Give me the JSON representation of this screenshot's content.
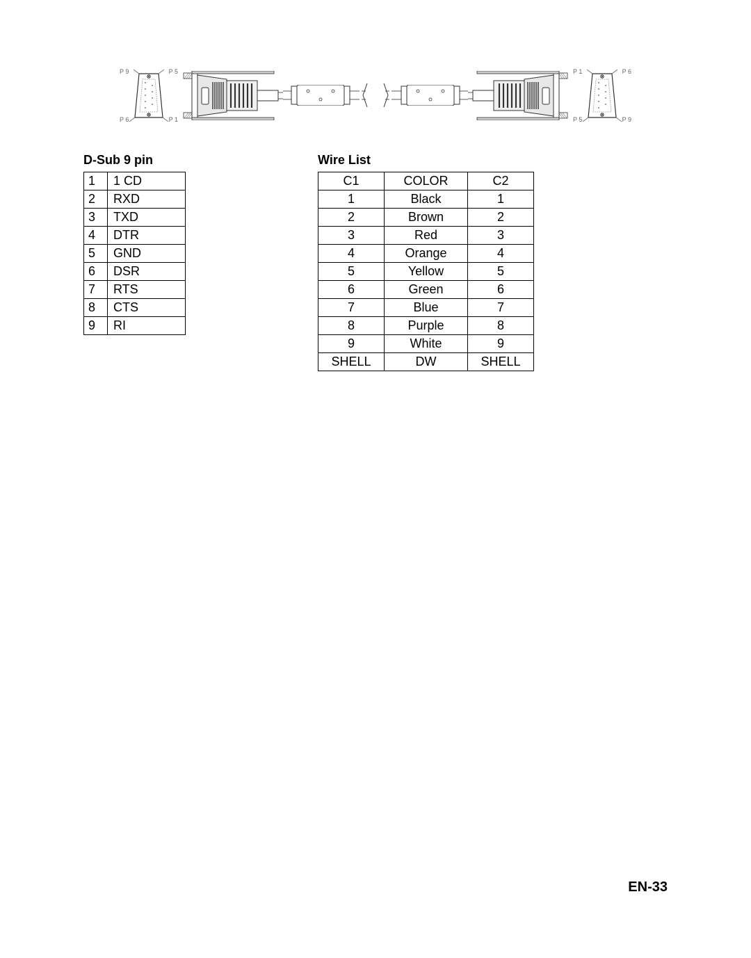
{
  "diagram": {
    "left_labels": {
      "top_left": "P 9",
      "top_right": "P 5",
      "bottom_left": "P 6",
      "bottom_right": "P 1"
    },
    "right_labels": {
      "top_left": "P 1",
      "top_right": "P 6",
      "bottom_left": "P 5",
      "bottom_right": "P 9"
    }
  },
  "pinout_table": {
    "title": "D-Sub 9 pin",
    "rows": [
      {
        "n": "1",
        "name": "1 CD"
      },
      {
        "n": "2",
        "name": "RXD"
      },
      {
        "n": "3",
        "name": "TXD"
      },
      {
        "n": "4",
        "name": "DTR"
      },
      {
        "n": "5",
        "name": "GND"
      },
      {
        "n": "6",
        "name": "DSR"
      },
      {
        "n": "7",
        "name": "RTS"
      },
      {
        "n": "8",
        "name": "CTS"
      },
      {
        "n": "9",
        "name": "RI"
      }
    ]
  },
  "wire_table": {
    "title": "Wire List",
    "headers": {
      "c1": "C1",
      "color": "COLOR",
      "c2": "C2"
    },
    "rows": [
      {
        "c1": "1",
        "color": "Black",
        "c2": "1"
      },
      {
        "c1": "2",
        "color": "Brown",
        "c2": "2"
      },
      {
        "c1": "3",
        "color": "Red",
        "c2": "3"
      },
      {
        "c1": "4",
        "color": "Orange",
        "c2": "4"
      },
      {
        "c1": "5",
        "color": "Yellow",
        "c2": "5"
      },
      {
        "c1": "6",
        "color": "Green",
        "c2": "6"
      },
      {
        "c1": "7",
        "color": "Blue",
        "c2": "7"
      },
      {
        "c1": "8",
        "color": "Purple",
        "c2": "8"
      },
      {
        "c1": "9",
        "color": "White",
        "c2": "9"
      },
      {
        "c1": "SHELL",
        "color": "DW",
        "c2": "SHELL"
      }
    ]
  },
  "page_number": "EN-33"
}
